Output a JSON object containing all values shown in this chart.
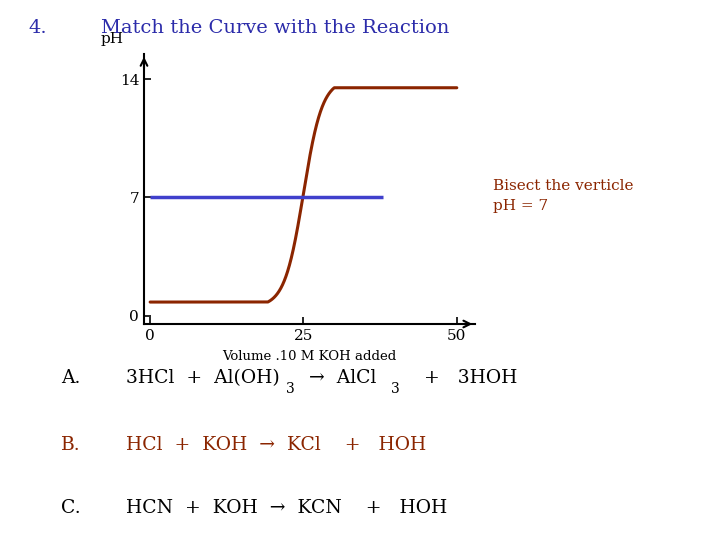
{
  "title": "Match the Curve with the Reaction",
  "title_number": "4.",
  "title_color": "#2b2baa",
  "background_color": "#ffffff",
  "curve_color": "#8B2500",
  "hline_color": "#4040cc",
  "hline_y": 7,
  "bisect_text_line1": "Bisect the verticle",
  "bisect_text_line2": "pH = 7",
  "bisect_text_color": "#8B2500",
  "xlabel": "Volume .10 M KOH added",
  "ylabel": "pH",
  "xlim": [
    -1,
    53
  ],
  "ylim": [
    -0.5,
    15.5
  ],
  "xticks": [
    0,
    25,
    50
  ],
  "yticks": [
    0,
    7,
    14
  ],
  "equivalence_x": 25,
  "row_B_color": "#8B2500",
  "row_AC_color": "#000000"
}
